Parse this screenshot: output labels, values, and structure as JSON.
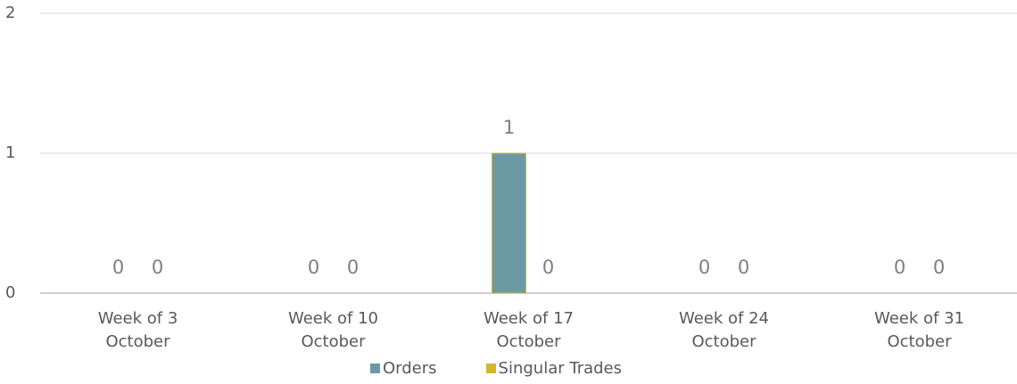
{
  "chart_data": {
    "type": "bar",
    "categories": [
      "Week of 3 October",
      "Week of 10 October",
      "Week of 17 October",
      "Week of 24 October",
      "Week of 31 October"
    ],
    "series": [
      {
        "name": "Orders",
        "color": "#6b9aa5",
        "values": [
          0,
          0,
          1,
          0,
          0
        ]
      },
      {
        "name": "Singular Trades",
        "color": "#d4b82a",
        "values": [
          0,
          0,
          0,
          0,
          0
        ]
      }
    ],
    "ylim": [
      0,
      2
    ],
    "yticks": [
      0,
      1,
      2
    ],
    "grid": true,
    "legend": "bottom"
  }
}
